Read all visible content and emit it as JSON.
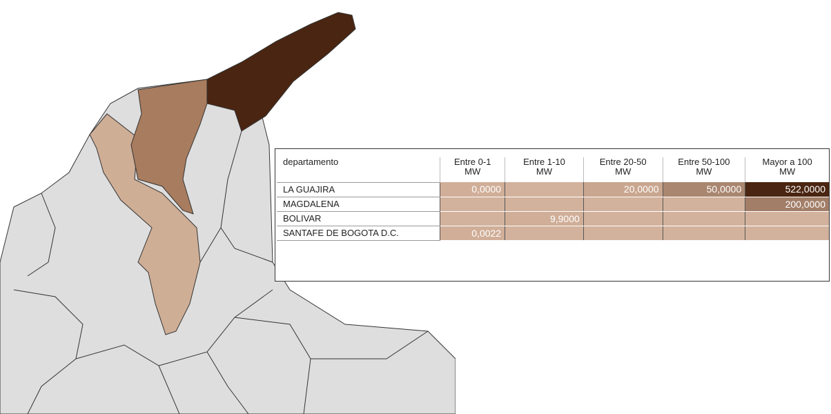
{
  "table": {
    "header": [
      "departamento",
      "Entre 0-1\nMW",
      "Entre 1-10\nMW",
      "Entre 20-50\nMW",
      "Entre 50-100\nMW",
      "Mayor a 100\nMW"
    ],
    "rows": [
      {
        "name": "LA GUAJIRA",
        "cells": [
          "0,0000",
          null,
          "20,0000",
          "50,0000",
          "522,0000"
        ],
        "colors": [
          "#d0ae98",
          "#d2b29d",
          "#c9a68f",
          "#a98670",
          "#4a2511"
        ]
      },
      {
        "name": "MAGDALENA",
        "cells": [
          null,
          null,
          null,
          null,
          "200,0000"
        ],
        "colors": [
          "#d2b29d",
          "#d2b29d",
          "#d2b29d",
          "#d2b29d",
          "#a27e68"
        ]
      },
      {
        "name": "BOLIVAR",
        "cells": [
          null,
          "9,9000",
          null,
          null,
          null
        ],
        "colors": [
          "#d2b29d",
          "#d0ae98",
          "#d2b29d",
          "#d2b29d",
          "#d2b29d"
        ]
      },
      {
        "name": "SANTAFE DE BOGOTA D.C.",
        "cells": [
          "0,0022",
          null,
          null,
          null,
          null
        ],
        "colors": [
          "#d0ae98",
          "#d2b29d",
          "#d2b29d",
          "#d2b29d",
          "#d2b29d"
        ]
      }
    ]
  }
}
